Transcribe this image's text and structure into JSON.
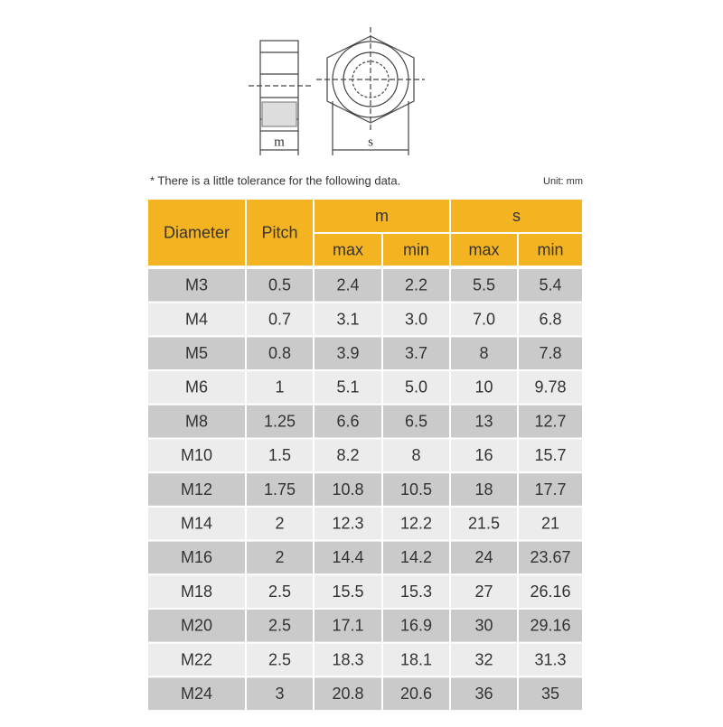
{
  "diagram": {
    "side_label": "m",
    "front_label": "s"
  },
  "note": "* There is a little tolerance for the following data.",
  "unit": "Unit: mm",
  "table": {
    "headers": {
      "diameter": "Diameter",
      "pitch": "Pitch",
      "m": "m",
      "s": "s",
      "m_max": "max",
      "m_min": "min",
      "s_max": "max",
      "s_min": "min"
    },
    "rows": [
      [
        "M3",
        "0.5",
        "2.4",
        "2.2",
        "5.5",
        "5.4"
      ],
      [
        "M4",
        "0.7",
        "3.1",
        "3.0",
        "7.0",
        "6.8"
      ],
      [
        "M5",
        "0.8",
        "3.9",
        "3.7",
        "8",
        "7.8"
      ],
      [
        "M6",
        "1",
        "5.1",
        "5.0",
        "10",
        "9.78"
      ],
      [
        "M8",
        "1.25",
        "6.6",
        "6.5",
        "13",
        "12.7"
      ],
      [
        "M10",
        "1.5",
        "8.2",
        "8",
        "16",
        "15.7"
      ],
      [
        "M12",
        "1.75",
        "10.8",
        "10.5",
        "18",
        "17.7"
      ],
      [
        "M14",
        "2",
        "12.3",
        "12.2",
        "21.5",
        "21"
      ],
      [
        "M16",
        "2",
        "14.4",
        "14.2",
        "24",
        "23.67"
      ],
      [
        "M18",
        "2.5",
        "15.5",
        "15.3",
        "27",
        "26.16"
      ],
      [
        "M20",
        "2.5",
        "17.1",
        "16.9",
        "30",
        "29.16"
      ],
      [
        "M22",
        "2.5",
        "18.3",
        "18.1",
        "32",
        "31.3"
      ],
      [
        "M24",
        "3",
        "20.8",
        "20.6",
        "36",
        "35"
      ]
    ]
  }
}
